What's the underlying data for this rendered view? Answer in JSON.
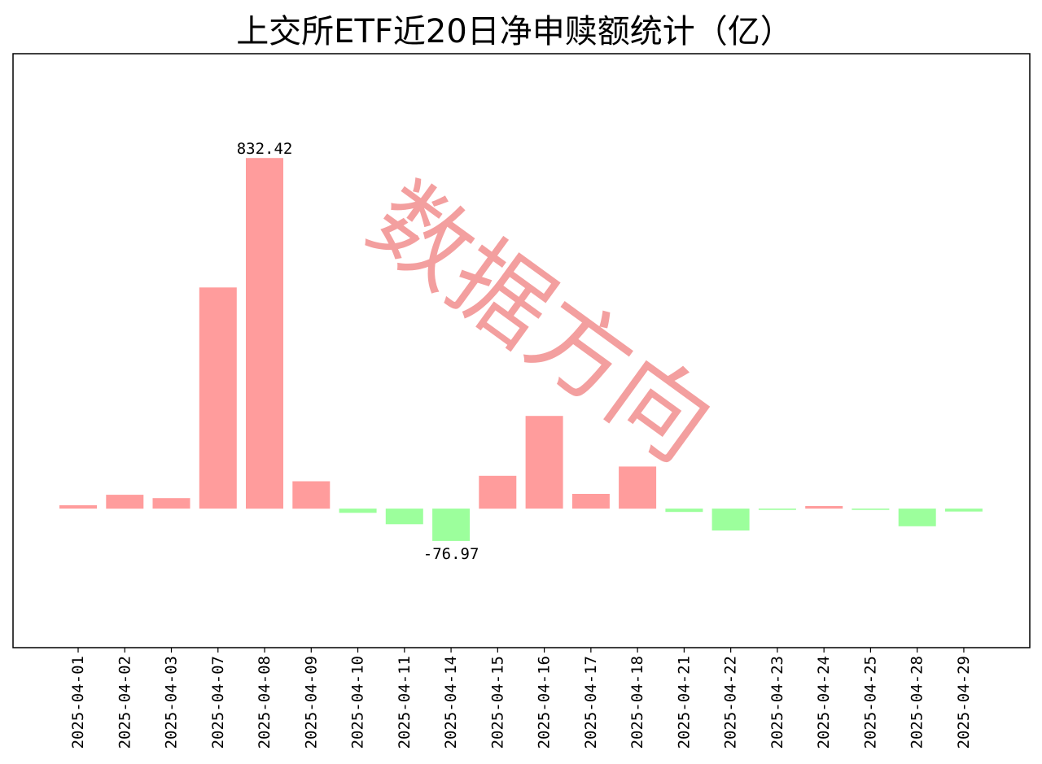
{
  "chart_data": {
    "type": "bar",
    "title": "上交所ETF近20日净申赎额统计（亿）",
    "xlabel": "",
    "ylabel": "",
    "categories": [
      "2025-04-01",
      "2025-04-02",
      "2025-04-03",
      "2025-04-07",
      "2025-04-08",
      "2025-04-09",
      "2025-04-10",
      "2025-04-11",
      "2025-04-14",
      "2025-04-15",
      "2025-04-16",
      "2025-04-17",
      "2025-04-18",
      "2025-04-21",
      "2025-04-22",
      "2025-04-23",
      "2025-04-24",
      "2025-04-25",
      "2025-04-28",
      "2025-04-29"
    ],
    "values": [
      8,
      33,
      25,
      525,
      832.42,
      65,
      -10,
      -37,
      -76.97,
      78,
      220,
      35,
      100,
      -8,
      -52,
      -3,
      6,
      -3,
      -42,
      -7
    ],
    "annotations": [
      {
        "category": "2025-04-08",
        "text": "832.42"
      },
      {
        "category": "2025-04-14",
        "text": "-76.97"
      }
    ],
    "ylim": [
      -330,
      1080
    ],
    "grid": false,
    "legend": "none",
    "colors": {
      "positive": "#ff9c9c",
      "negative": "#9cff9c",
      "axes": "#000000"
    }
  },
  "watermark": {
    "text": "数据方向",
    "color": "#f08080"
  }
}
